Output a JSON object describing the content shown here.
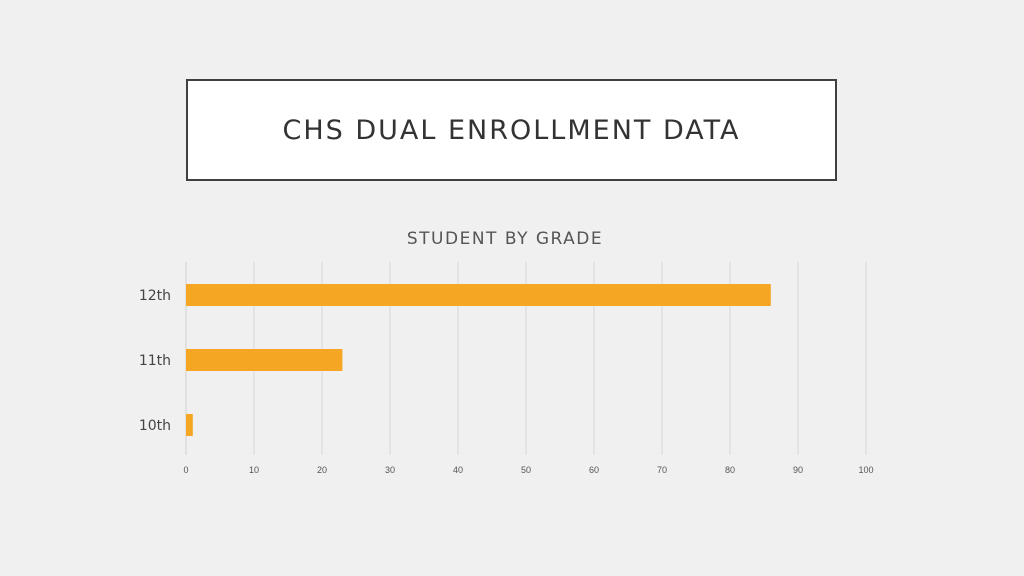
{
  "slide": {
    "title": "CHS DUAL ENROLLMENT DATA"
  },
  "colors": {
    "background": "#f0f0f0",
    "bar": "#f5a623",
    "title_border": "#404040"
  },
  "chart_data": {
    "type": "bar",
    "orientation": "horizontal",
    "title": "STUDENT BY GRADE",
    "categories": [
      "12th",
      "11th",
      "10th"
    ],
    "values": [
      86,
      23,
      1
    ],
    "xlim": [
      0,
      100
    ],
    "xticks": [
      "0",
      "10",
      "20",
      "30",
      "40",
      "50",
      "60",
      "70",
      "80",
      "90",
      "100"
    ],
    "grid": true,
    "legend": "none"
  }
}
